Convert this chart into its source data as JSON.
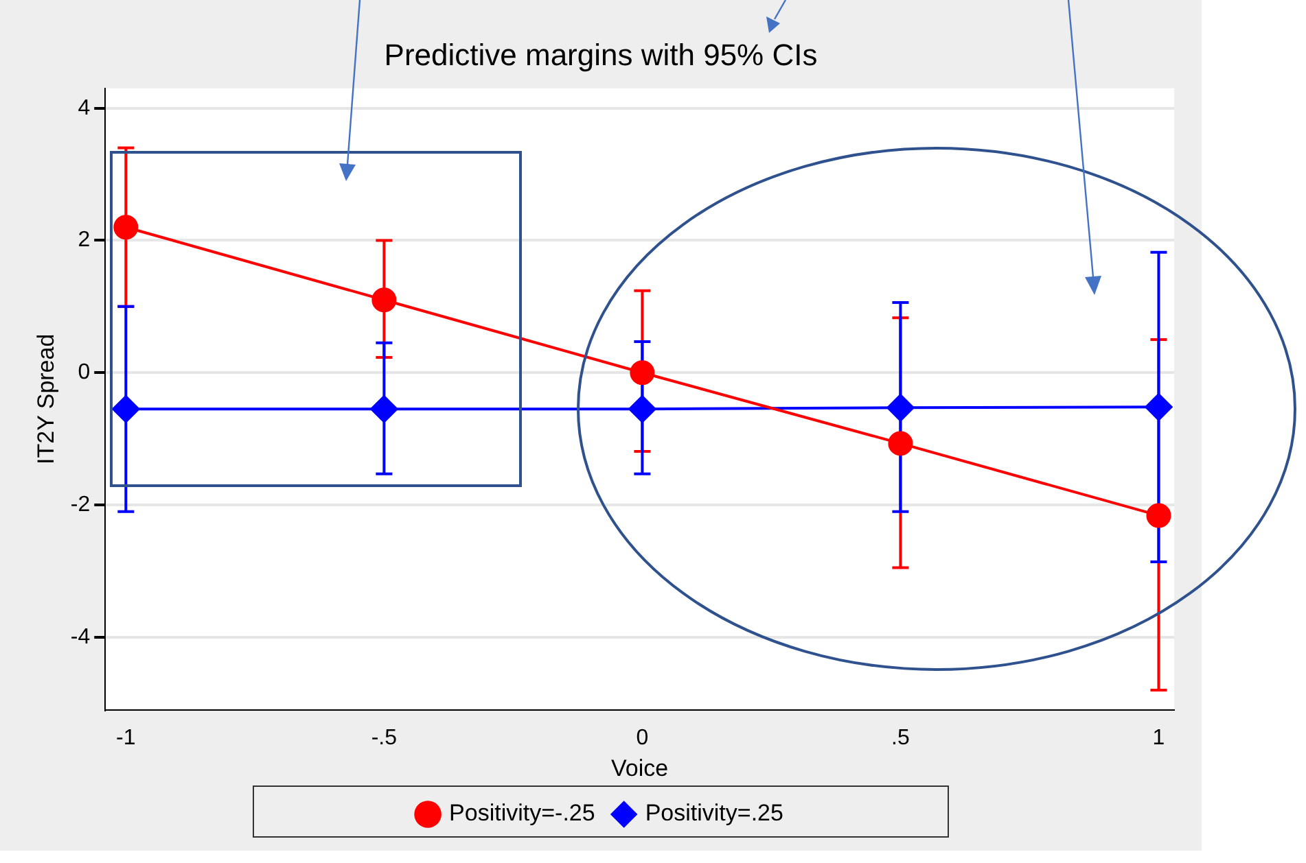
{
  "chart_data": {
    "type": "line",
    "title": "Predictive margins with 95% CIs",
    "xlabel": "Voice",
    "ylabel": "IT2Y Spread",
    "x": [
      -1,
      -0.5,
      0,
      0.5,
      1
    ],
    "xlim": [
      -1.04,
      1.03
    ],
    "xticks": [
      {
        "value": -1,
        "label": "-1"
      },
      {
        "value": -0.5,
        "label": "-.5"
      },
      0,
      {
        "value": 0.5,
        "label": ".5"
      },
      1
    ],
    "ylim": [
      -5.1,
      4.3
    ],
    "yticks": [
      -4,
      -2,
      0,
      2,
      4
    ],
    "series": [
      {
        "name": "Positivity=-.25",
        "color": "#ff0000",
        "marker": "circle",
        "values": [
          2.2,
          1.1,
          0.0,
          -1.07,
          -2.16
        ],
        "errors": [
          [
            1.0,
            3.4
          ],
          [
            0.23,
            2.0
          ],
          [
            -1.19,
            1.24
          ],
          [
            -2.95,
            0.83
          ],
          [
            -4.8,
            0.5
          ]
        ]
      },
      {
        "name": "Positivity=.25",
        "color": "#0000ff",
        "marker": "diamond",
        "values": [
          -0.55,
          -0.55,
          -0.55,
          -0.53,
          -0.52
        ],
        "errors": [
          [
            -2.1,
            1.0
          ],
          [
            -1.53,
            0.45
          ],
          [
            -1.53,
            0.47
          ],
          [
            -2.1,
            1.06
          ],
          [
            -2.86,
            1.82
          ]
        ]
      }
    ],
    "grid": "y",
    "legend": "bottom"
  }
}
